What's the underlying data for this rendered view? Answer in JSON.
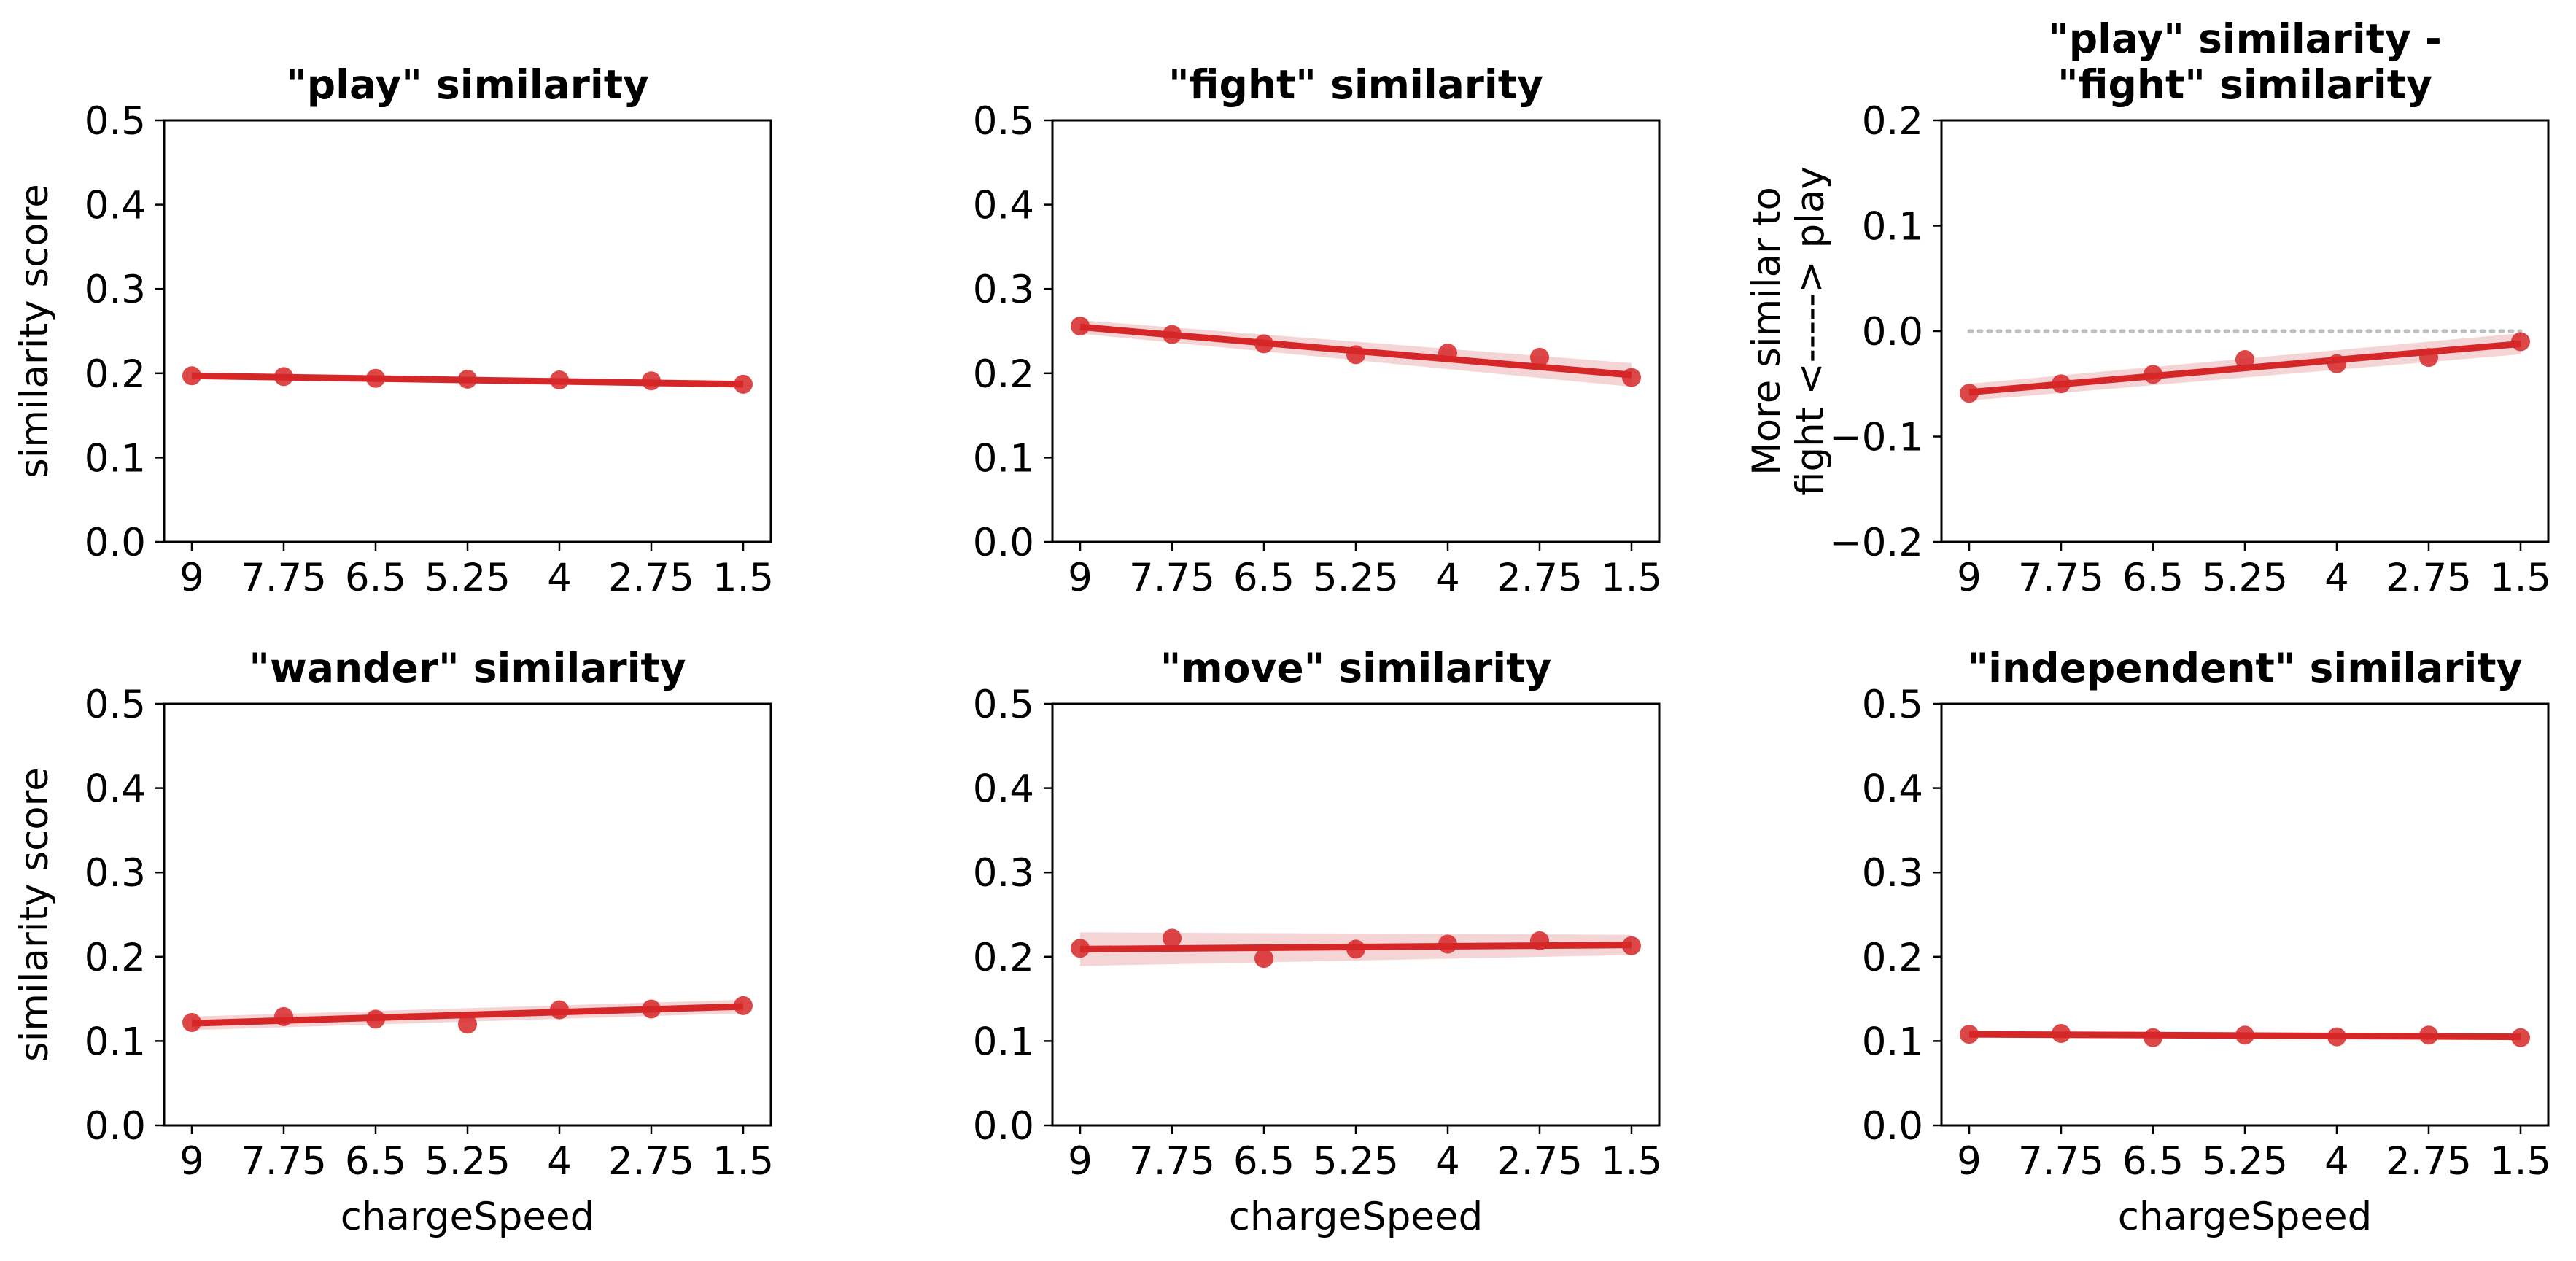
{
  "style": {
    "point_color": "#d62728",
    "line_color": "#d62728",
    "band_color": "#e8a0a2",
    "zero_line_color": "#bfbfbf"
  },
  "chart_data": [
    {
      "type": "scatter",
      "title": "\"play\" similarity",
      "xlabel": "",
      "ylabel": "similarity score",
      "categories": [
        "9",
        "7.75",
        "6.5",
        "5.25",
        "4",
        "2.75",
        "1.5"
      ],
      "values": [
        0.197,
        0.196,
        0.194,
        0.193,
        0.192,
        0.191,
        0.187
      ],
      "fit": [
        0.197,
        0.187
      ],
      "band": [
        0.004,
        0.004
      ],
      "ylim": [
        0,
        0.5
      ],
      "yticks": [
        "0.0",
        "0.1",
        "0.2",
        "0.3",
        "0.4",
        "0.5"
      ],
      "zero_line": false
    },
    {
      "type": "scatter",
      "title": "\"fight\" similarity",
      "xlabel": "",
      "ylabel": "",
      "categories": [
        "9",
        "7.75",
        "6.5",
        "5.25",
        "4",
        "2.75",
        "1.5"
      ],
      "values": [
        0.256,
        0.246,
        0.235,
        0.222,
        0.224,
        0.219,
        0.195
      ],
      "fit": [
        0.255,
        0.198
      ],
      "band": [
        0.008,
        0.014
      ],
      "ylim": [
        0,
        0.5
      ],
      "yticks": [
        "0.0",
        "0.1",
        "0.2",
        "0.3",
        "0.4",
        "0.5"
      ],
      "zero_line": false
    },
    {
      "type": "scatter",
      "title": "\"play\" similarity -\n\"fight\" similarity",
      "xlabel": "",
      "ylabel": "More similar to\nfight <-----> play",
      "categories": [
        "9",
        "7.75",
        "6.5",
        "5.25",
        "4",
        "2.75",
        "1.5"
      ],
      "values": [
        -0.059,
        -0.05,
        -0.041,
        -0.027,
        -0.031,
        -0.025,
        -0.01
      ],
      "fit": [
        -0.058,
        -0.012
      ],
      "band": [
        0.008,
        0.01
      ],
      "ylim": [
        -0.2,
        0.2
      ],
      "yticks": [
        "−0.2",
        "−0.1",
        "0.0",
        "0.1",
        "0.2"
      ],
      "zero_line": true
    },
    {
      "type": "scatter",
      "title": "\"wander\" similarity",
      "xlabel": "chargeSpeed",
      "ylabel": "similarity score",
      "categories": [
        "9",
        "7.75",
        "6.5",
        "5.25",
        "4",
        "2.75",
        "1.5"
      ],
      "values": [
        0.122,
        0.129,
        0.126,
        0.12,
        0.137,
        0.138,
        0.142
      ],
      "fit": [
        0.121,
        0.141
      ],
      "band": [
        0.008,
        0.008
      ],
      "ylim": [
        0,
        0.5
      ],
      "yticks": [
        "0.0",
        "0.1",
        "0.2",
        "0.3",
        "0.4",
        "0.5"
      ],
      "zero_line": false
    },
    {
      "type": "scatter",
      "title": "\"move\" similarity",
      "xlabel": "chargeSpeed",
      "ylabel": "",
      "categories": [
        "9",
        "7.75",
        "6.5",
        "5.25",
        "4",
        "2.75",
        "1.5"
      ],
      "values": [
        0.21,
        0.222,
        0.198,
        0.209,
        0.215,
        0.219,
        0.213
      ],
      "fit": [
        0.209,
        0.214
      ],
      "band": [
        0.02,
        0.012
      ],
      "ylim": [
        0,
        0.5
      ],
      "yticks": [
        "0.0",
        "0.1",
        "0.2",
        "0.3",
        "0.4",
        "0.5"
      ],
      "zero_line": false
    },
    {
      "type": "scatter",
      "title": "\"independent\" similarity",
      "xlabel": "chargeSpeed",
      "ylabel": "",
      "categories": [
        "9",
        "7.75",
        "6.5",
        "5.25",
        "4",
        "2.75",
        "1.5"
      ],
      "values": [
        0.108,
        0.109,
        0.104,
        0.107,
        0.105,
        0.107,
        0.104
      ],
      "fit": [
        0.108,
        0.105
      ],
      "band": [
        0.003,
        0.003
      ],
      "ylim": [
        0,
        0.5
      ],
      "yticks": [
        "0.0",
        "0.1",
        "0.2",
        "0.3",
        "0.4",
        "0.5"
      ],
      "zero_line": false
    }
  ]
}
